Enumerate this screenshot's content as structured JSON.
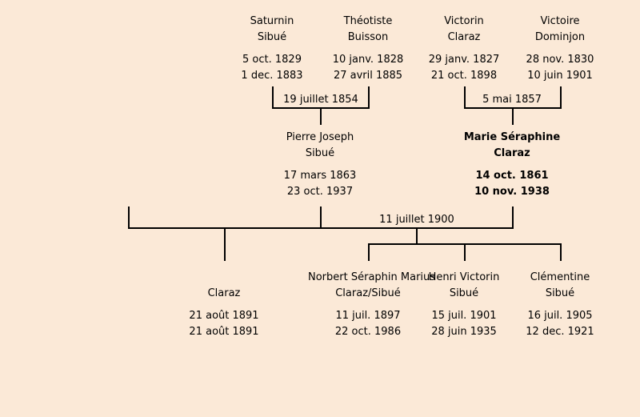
{
  "colors": {
    "background": "#fbe9d7",
    "lines": "#000000"
  },
  "grandparents": [
    {
      "id": "saturnin",
      "first": "Saturnin",
      "last": "Sibué",
      "birth": "5 oct. 1829",
      "death": "1 dec. 1883"
    },
    {
      "id": "theotiste",
      "first": "Théotiste",
      "last": "Buisson",
      "birth": "10 janv. 1828",
      "death": "27 avril 1885"
    },
    {
      "id": "victorin",
      "first": "Victorin",
      "last": "Claraz",
      "birth": "29 janv. 1827",
      "death": "21 oct. 1898"
    },
    {
      "id": "victoire",
      "first": "Victoire",
      "last": "Dominjon",
      "birth": "28 nov. 1830",
      "death": "10 juin 1901"
    }
  ],
  "parents": [
    {
      "id": "pierre",
      "first": "Pierre Joseph",
      "last": "Sibué",
      "birth": "17 mars 1863",
      "death": "23 oct. 1937"
    },
    {
      "id": "marie",
      "first": "Marie Séraphine",
      "last": "Claraz",
      "birth": "14 oct. 1861",
      "death": "10 nov. 1938"
    }
  ],
  "children": [
    {
      "id": "claraz",
      "first": "",
      "last": "Claraz",
      "birth": "21 août 1891",
      "death": "21 août 1891"
    },
    {
      "id": "norbert",
      "first": "Norbert Séraphin Marius",
      "last": "Claraz/Sibué",
      "birth": "11 juil. 1897",
      "death": "22 oct. 1986"
    },
    {
      "id": "henri",
      "first": "Henri Victorin",
      "last": "Sibué",
      "birth": "15 juil. 1901",
      "death": "28 juin 1935"
    },
    {
      "id": "clementine",
      "first": "Clémentine",
      "last": "Sibué",
      "birth": "16 juil. 1905",
      "death": "12 dec. 1921"
    }
  ],
  "marriages": {
    "sibue_buisson": "19 juillet 1854",
    "claraz_dominjon": "5 mai 1857",
    "sibue_claraz": "11 juillet 1900"
  }
}
